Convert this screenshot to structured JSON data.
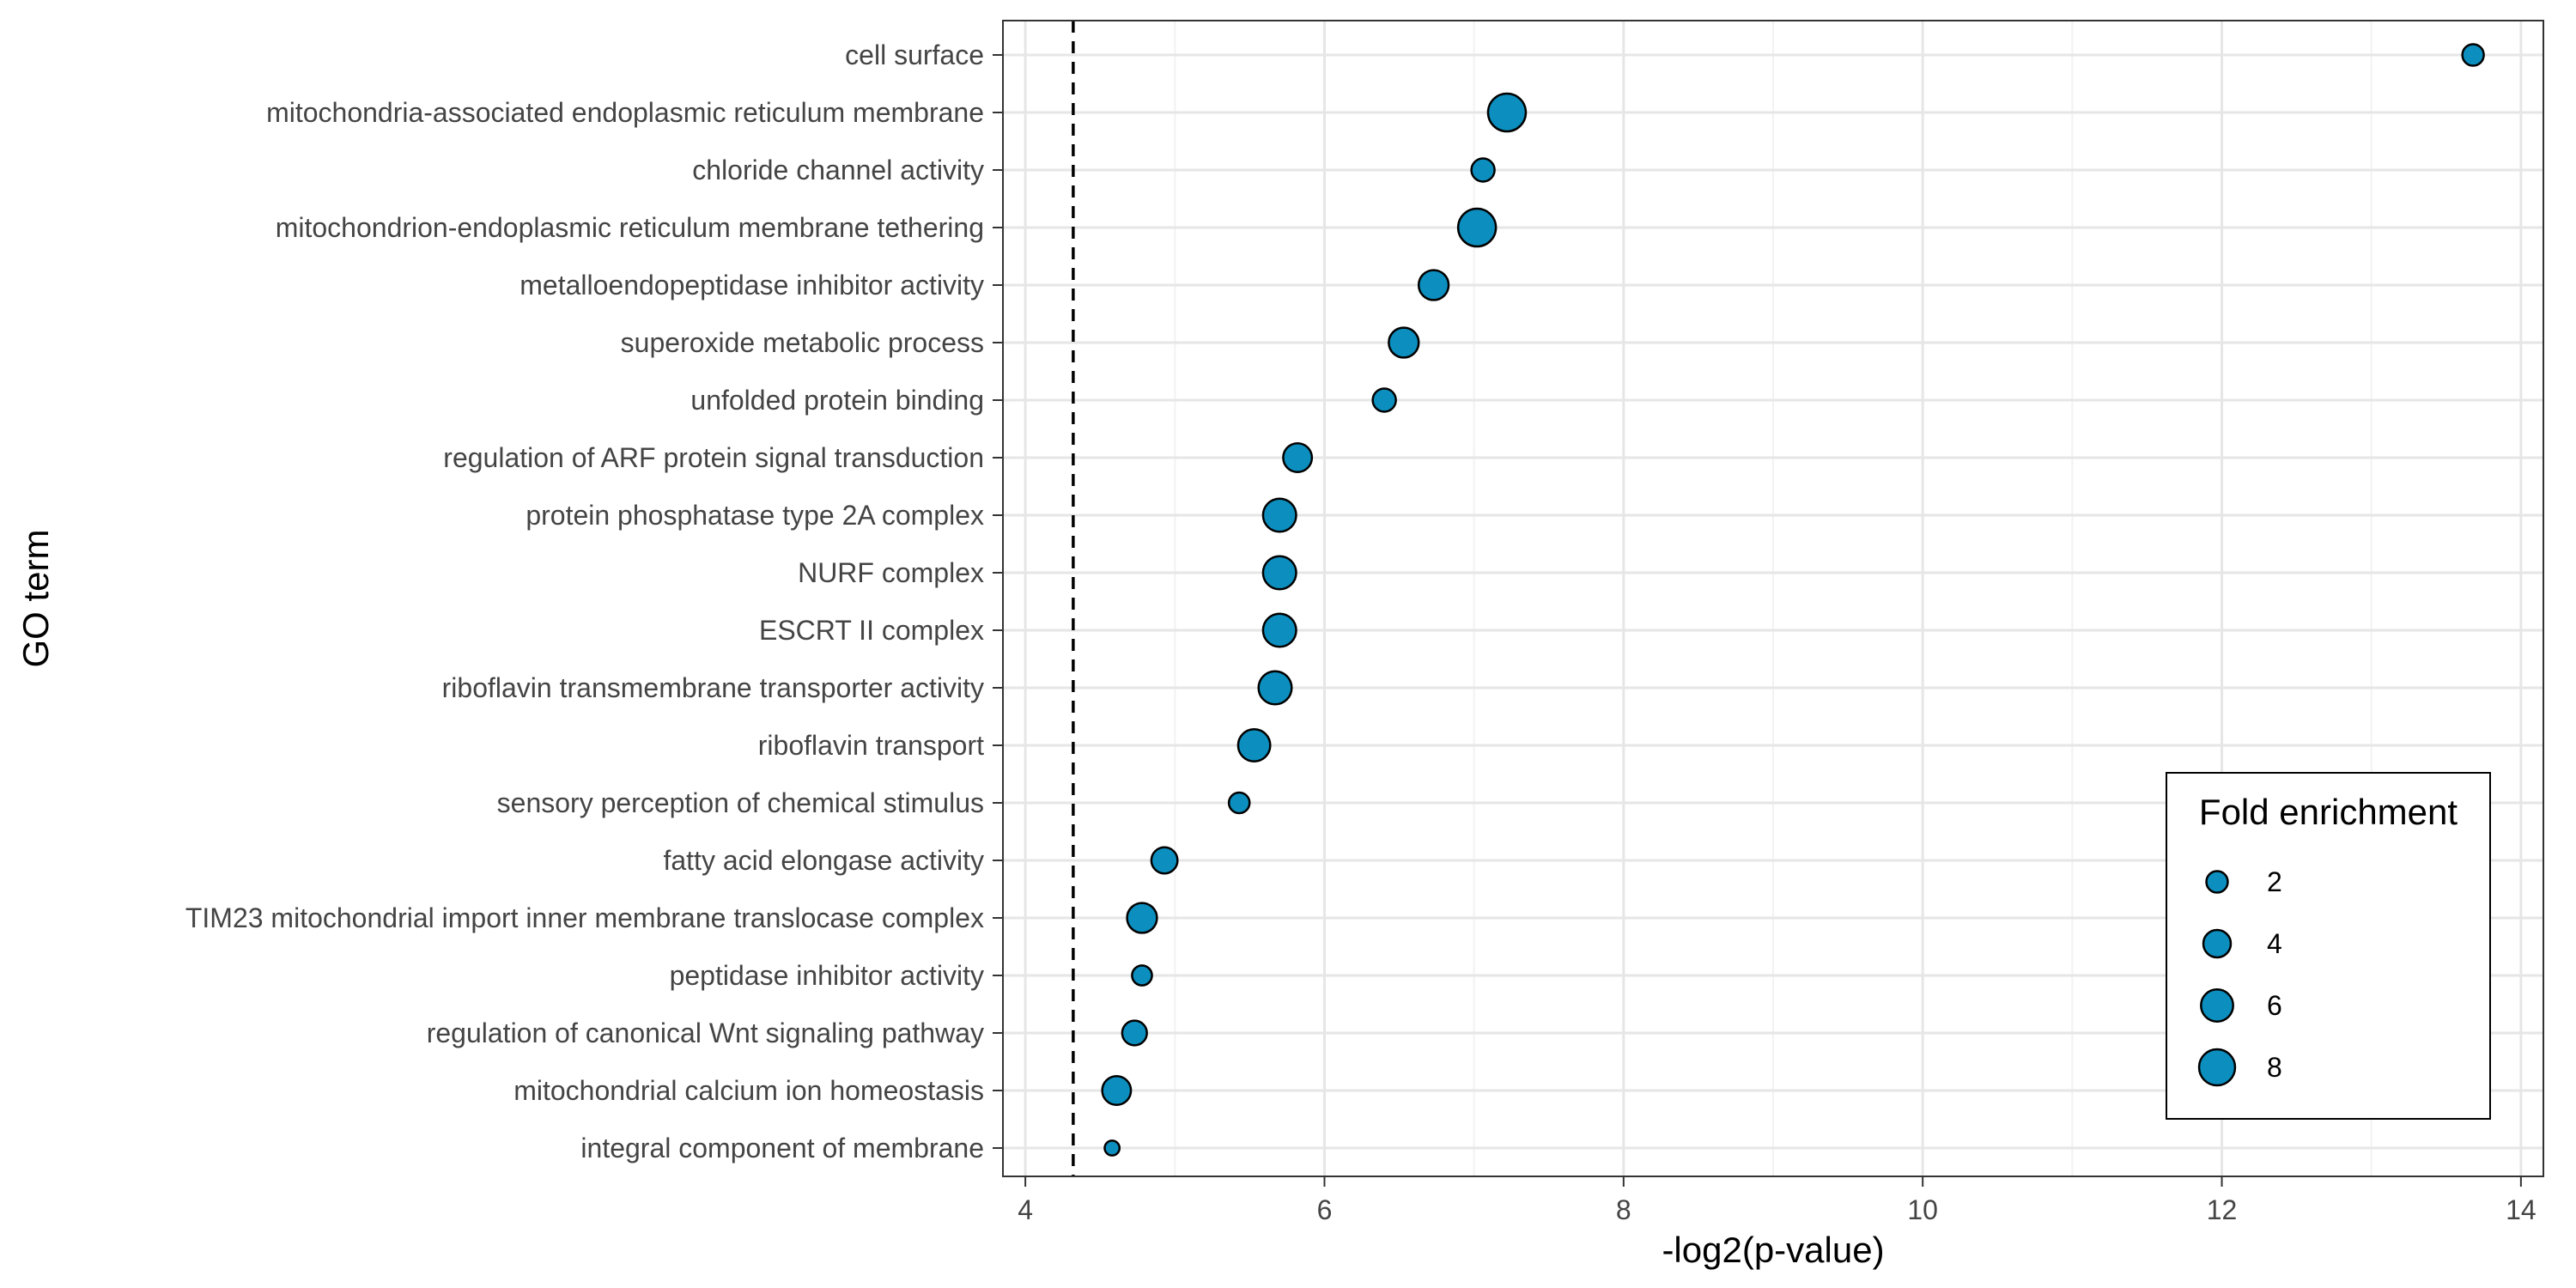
{
  "chart_data": {
    "type": "scatter",
    "xlabel": "-log2(p-value)",
    "ylabel": "GO term",
    "xlim": [
      3.85,
      14.15
    ],
    "x_ticks": [
      4,
      6,
      8,
      10,
      12,
      14
    ],
    "x_tick_labels": [
      "4",
      "6",
      "8",
      "10",
      "12",
      "14"
    ],
    "threshold_line_x": 4.32,
    "grid": true,
    "legend_placement": "bottom-right",
    "point_color": "#0c8fbf",
    "point_outline_color": "#000000",
    "legend": {
      "title": "Fold enrichment",
      "entries": [
        {
          "value": 2,
          "label": "2"
        },
        {
          "value": 4,
          "label": "4"
        },
        {
          "value": 6,
          "label": "6"
        },
        {
          "value": 8,
          "label": "8"
        }
      ]
    },
    "points": [
      {
        "term": "cell surface",
        "x": 13.68,
        "fold": 2.0
      },
      {
        "term": "mitochondria-associated endoplasmic reticulum membrane",
        "x": 7.22,
        "fold": 9.0
      },
      {
        "term": "chloride channel activity",
        "x": 7.06,
        "fold": 2.5
      },
      {
        "term": "mitochondrion-endoplasmic reticulum membrane tethering",
        "x": 7.02,
        "fold": 9.0
      },
      {
        "term": "metalloendopeptidase inhibitor activity",
        "x": 6.73,
        "fold": 5.0
      },
      {
        "term": "superoxide metabolic process",
        "x": 6.53,
        "fold": 5.0
      },
      {
        "term": "unfolded protein binding",
        "x": 6.4,
        "fold": 2.5
      },
      {
        "term": "regulation of ARF protein signal transduction",
        "x": 5.82,
        "fold": 4.5
      },
      {
        "term": "protein phosphatase type 2A complex",
        "x": 5.7,
        "fold": 6.5
      },
      {
        "term": "NURF complex",
        "x": 5.7,
        "fold": 6.5
      },
      {
        "term": "ESCRT II complex",
        "x": 5.7,
        "fold": 6.5
      },
      {
        "term": "riboflavin transmembrane transporter activity",
        "x": 5.67,
        "fold": 6.5
      },
      {
        "term": "riboflavin transport",
        "x": 5.53,
        "fold": 6.0
      },
      {
        "term": "sensory perception of chemical stimulus",
        "x": 5.43,
        "fold": 1.8
      },
      {
        "term": "fatty acid elongase activity",
        "x": 4.93,
        "fold": 3.5
      },
      {
        "term": "TIM23 mitochondrial import inner membrane translocase complex",
        "x": 4.78,
        "fold": 5.0
      },
      {
        "term": "peptidase inhibitor activity",
        "x": 4.78,
        "fold": 1.6
      },
      {
        "term": "regulation of canonical Wnt signaling pathway",
        "x": 4.73,
        "fold": 3.0
      },
      {
        "term": "mitochondrial calcium ion homeostasis",
        "x": 4.61,
        "fold": 4.5
      },
      {
        "term": "integral component of membrane",
        "x": 4.58,
        "fold": 0.6
      }
    ]
  }
}
